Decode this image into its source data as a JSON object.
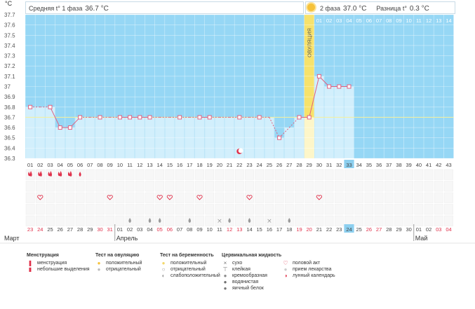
{
  "header": {
    "unit": "°C",
    "phase1_label": "Средняя t° 1 фаза",
    "phase1_value": "36.7 °C",
    "phase2_label": "2 фаза",
    "phase2_value": "37.0 °C",
    "diff_label": "Разница t°",
    "diff_value": "0.3 °C",
    "sun_icon": "sun-icon"
  },
  "colors": {
    "sky": "#96d7f5",
    "bar": "#d2effc",
    "line": "#e06080",
    "ovulation": "#f7e26b",
    "red_date": "#e0304a",
    "highlight": "#8ccfef"
  },
  "chart_data": {
    "type": "line",
    "title": "",
    "xlabel": "",
    "ylabel": "°C",
    "ylim": [
      36.3,
      37.7
    ],
    "yticks": [
      "36.3",
      "36.4",
      "36.5",
      "36.6",
      "36.7",
      "36.8",
      "36.9",
      "37",
      "37.1",
      "37.2",
      "37.3",
      "37.4",
      "37.5",
      "37.6",
      "37.7"
    ],
    "cycle_days": [
      "01",
      "02",
      "03",
      "04",
      "05",
      "06",
      "07",
      "08",
      "09",
      "10",
      "11",
      "12",
      "13",
      "14",
      "15",
      "16",
      "17",
      "18",
      "19",
      "20",
      "21",
      "22",
      "23",
      "24",
      "25",
      "26",
      "27",
      "28",
      "29",
      "30",
      "31",
      "32",
      "33",
      "34",
      "35",
      "36",
      "37",
      "38",
      "39",
      "40",
      "41",
      "42",
      "43"
    ],
    "phase2_days": [
      "01",
      "02",
      "03",
      "04",
      "05",
      "06",
      "07",
      "08",
      "09",
      "10",
      "11",
      "12",
      "13",
      "14"
    ],
    "highlighted_day": "33",
    "ovulation_day": "29",
    "ovulation_label": "ОВУЛЯЦИЯ",
    "coverline": 36.7,
    "series": [
      {
        "values": [
          36.8,
          36.8,
          36.8,
          36.6,
          36.6,
          36.7,
          36.7,
          36.7,
          36.7,
          36.7,
          36.7,
          36.7,
          36.7,
          36.7,
          36.7,
          36.7,
          36.7,
          36.7,
          36.7,
          36.7,
          36.7,
          36.7,
          36.7,
          36.7,
          36.7,
          36.5,
          36.6,
          36.7,
          36.7,
          37.1,
          37.0,
          37.0,
          37.0,
          null,
          null,
          null,
          null,
          null,
          null,
          null,
          null,
          null,
          null
        ],
        "measured": [
          1,
          0,
          1,
          1,
          1,
          1,
          0,
          1,
          0,
          1,
          1,
          1,
          1,
          0,
          0,
          1,
          0,
          1,
          1,
          0,
          0,
          1,
          0,
          1,
          0,
          1,
          0,
          1,
          1,
          1,
          1,
          1,
          1,
          0,
          0,
          0,
          0,
          0,
          0,
          0,
          0,
          0,
          0
        ]
      }
    ],
    "dates": [
      "23",
      "24",
      "25",
      "26",
      "27",
      "28",
      "29",
      "30",
      "31",
      "01",
      "02",
      "03",
      "04",
      "05",
      "06",
      "07",
      "08",
      "09",
      "10",
      "11",
      "12",
      "13",
      "14",
      "15",
      "16",
      "17",
      "18",
      "19",
      "20",
      "21",
      "22",
      "23",
      "24",
      "25",
      "26",
      "27",
      "28",
      "29",
      "30",
      "01",
      "02",
      "03",
      "04"
    ],
    "red_dates": [
      0,
      1,
      7,
      8,
      13,
      14,
      20,
      21,
      27,
      28,
      34,
      35,
      41,
      42
    ],
    "highlighted_date_index": 32,
    "months": [
      {
        "label": "Март",
        "index": 0
      },
      {
        "label": "Апрель",
        "index": 9
      },
      {
        "label": "Май",
        "index": 39
      }
    ],
    "menstruation": [
      2,
      2,
      2,
      2,
      2,
      1,
      0,
      0,
      0,
      0,
      0,
      0,
      0,
      0,
      0,
      0,
      0,
      0,
      0,
      0,
      0,
      0,
      0,
      0,
      0,
      0,
      0,
      0,
      0,
      0,
      0,
      0,
      0,
      0,
      0,
      0,
      0,
      0,
      0,
      0,
      0,
      0,
      0
    ],
    "intercourse": [
      0,
      1,
      0,
      0,
      0,
      0,
      0,
      0,
      1,
      0,
      0,
      0,
      0,
      1,
      1,
      0,
      0,
      1,
      0,
      0,
      0,
      0,
      1,
      0,
      0,
      0,
      0,
      0,
      0,
      1,
      0,
      0,
      0,
      0,
      0,
      0,
      0,
      0,
      0,
      0,
      0,
      0,
      0
    ],
    "fluid": [
      "",
      "",
      "",
      "",
      "",
      "",
      "",
      "",
      "",
      "",
      "drop",
      "",
      "drop",
      "drop",
      "",
      "",
      "drop",
      "",
      "",
      "x",
      "drop",
      "",
      "drop",
      "",
      "x",
      "",
      "drop",
      "",
      "",
      "",
      "",
      "",
      "",
      "",
      "",
      "",
      "",
      "",
      "",
      "",
      "",
      "",
      ""
    ],
    "moon_day": 21
  },
  "legend": {
    "groups": [
      {
        "title": "Менструация",
        "items": [
          {
            "icon": "drop-big-icon",
            "label": "менструация"
          },
          {
            "icon": "drop-small-icon",
            "label": "небольшие выделения"
          }
        ]
      },
      {
        "title": "Тест на овуляцию",
        "items": [
          {
            "icon": "sun-icon",
            "label": "положительный"
          },
          {
            "icon": "sun-gray-icon",
            "label": "отрицательный"
          }
        ]
      },
      {
        "title": "Тест на беременность",
        "items": [
          {
            "icon": "circle-yellow-icon",
            "label": "положительный"
          },
          {
            "icon": "circle-white-icon",
            "label": "отрицательный"
          },
          {
            "icon": "circle-half-icon",
            "label": "слабоположительный"
          }
        ]
      },
      {
        "title": "Цервикальная жидкость",
        "items": [
          {
            "icon": "x-icon",
            "label": "сухо"
          },
          {
            "icon": "sticky-icon",
            "label": "клейкая"
          },
          {
            "icon": "creamy-icon",
            "label": "кремообразная"
          },
          {
            "icon": "watery-icon",
            "label": "водянистая"
          },
          {
            "icon": "eggwhite-icon",
            "label": "яичный белок"
          }
        ]
      },
      {
        "title": "",
        "items": [
          {
            "icon": "heart-icon",
            "label": "половой акт"
          },
          {
            "icon": "pill-icon",
            "label": "прием лекарства"
          },
          {
            "icon": "moon-icon",
            "label": "лунный календарь"
          }
        ]
      }
    ]
  }
}
